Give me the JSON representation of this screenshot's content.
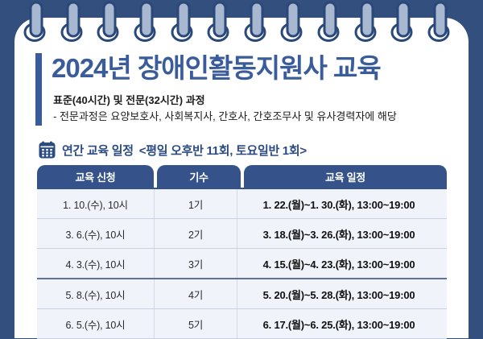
{
  "page": {
    "title": "2024년 장애인활동지원사 교육",
    "subtitle_line1": "표준(40시간) 및 전문(32시간) 과정",
    "subtitle_line2": "- 전문과정은 요양보호사, 사회복지사, 간호사, 간호조무사 및 유사경력자에 해당"
  },
  "section": {
    "icon": "calendar-icon",
    "heading": "연간 교육 일정",
    "heading_note": "<평일 오후반 11회, 토요일반 1회>"
  },
  "table": {
    "headers": [
      "교육 신청",
      "기수",
      "교육 일정"
    ],
    "rows": [
      {
        "apply": "1. 10.(수), 10시",
        "cohort": "1기",
        "schedule": "1. 22.(월)~1. 30.(화), 13:00~19:00"
      },
      {
        "apply": "3. 6.(수), 10시",
        "cohort": "2기",
        "schedule": "3. 18.(월)~3. 26.(화), 13:00~19:00"
      },
      {
        "apply": "4. 3.(수), 10시",
        "cohort": "3기",
        "schedule": "4. 15.(월)~4. 23.(화), 13:00~19:00"
      },
      {
        "apply": "5. 8.(수), 10시",
        "cohort": "4기",
        "schedule": "5. 20.(월)~5. 28.(화), 13:00~19:00"
      },
      {
        "apply": "6. 5.(수), 10시",
        "cohort": "5기",
        "schedule": "6. 17.(월)~6. 25.(화), 13:00~19:00"
      }
    ]
  },
  "colors": {
    "background": "#334f7d",
    "accent_blue": "#3b5c9a",
    "heading_blue": "#2c4b82",
    "table_header_bg": "#35538a",
    "row_bg": "#f0f3fa",
    "ring_bar": "#a8b8d1",
    "ring_outline": "#2a4879"
  }
}
